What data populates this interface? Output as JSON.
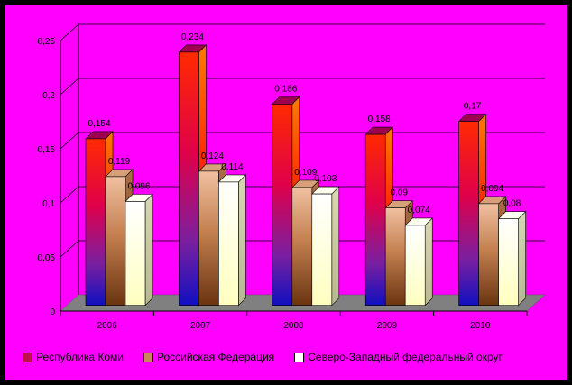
{
  "chart_data": {
    "type": "bar",
    "title": "",
    "xlabel": "",
    "ylabel": "",
    "categories": [
      "2006",
      "2007",
      "2008",
      "2009",
      "2010"
    ],
    "series": [
      {
        "name": "Республика Коми",
        "values": [
          0.154,
          0.234,
          0.186,
          0.158,
          0.17
        ],
        "labels": [
          "0,154",
          "0,234",
          "0,186",
          "0,158",
          "0,17"
        ],
        "color": "#ff1a1a"
      },
      {
        "name": "Российская Федерация",
        "values": [
          0.119,
          0.124,
          0.109,
          0.09,
          0.094
        ],
        "labels": [
          "0,119",
          "0,124",
          "0,109",
          "0,09",
          "0,094"
        ],
        "color": "#c8875a"
      },
      {
        "name": "Северо-Западный федеральный округ",
        "values": [
          0.096,
          0.114,
          0.103,
          0.074,
          0.08
        ],
        "labels": [
          "0,096",
          "0,114",
          "0,103",
          "0,074",
          "0,08"
        ],
        "color": "#ffffcc"
      }
    ],
    "ylim": [
      0,
      0.25
    ],
    "yticks": [
      0,
      0.05,
      0.1,
      0.15,
      0.2,
      0.25
    ],
    "ytick_labels": [
      "0",
      "0,05",
      "0,1",
      "0,15",
      "0,2",
      "0,25"
    ],
    "grid": true,
    "legend_position": "bottom",
    "colors": {
      "background": "#ff00ff",
      "frame": "#000000",
      "floor": "#808080",
      "gridline": "#000000"
    }
  }
}
